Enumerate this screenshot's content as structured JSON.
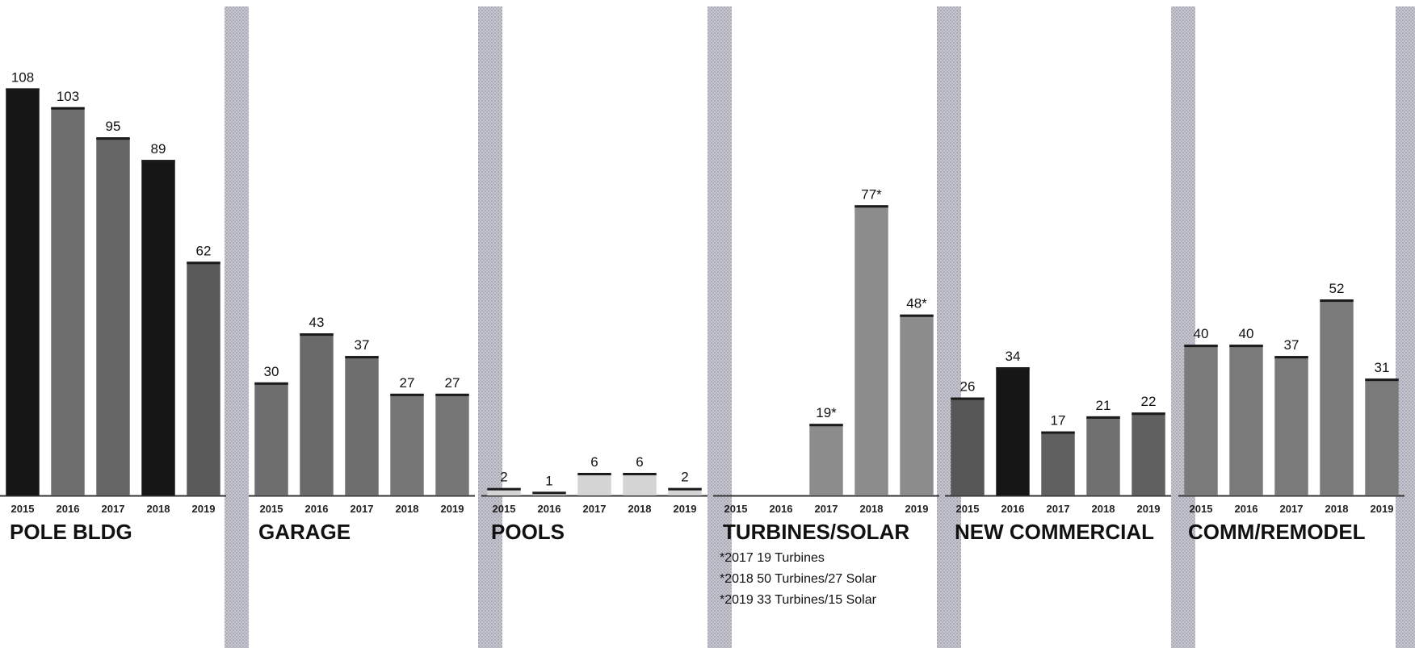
{
  "chart_data": {
    "type": "bar",
    "title": "",
    "xlabel": "",
    "ylabel": "",
    "ylim": [
      0,
      125
    ],
    "grid": false,
    "legend": "none",
    "groups": [
      {
        "name": "POLE BLDG",
        "categories": [
          "2015",
          "2016",
          "2017",
          "2018",
          "2019"
        ],
        "values": [
          108,
          103,
          95,
          89,
          62
        ],
        "labels": [
          "108",
          "103",
          "95",
          "89",
          "62"
        ],
        "colors": [
          "#161616",
          "#6e6e6e",
          "#666666",
          "#161616",
          "#5a5a5a"
        ],
        "notes": []
      },
      {
        "name": "GARAGE",
        "categories": [
          "2015",
          "2016",
          "2017",
          "2018",
          "2019"
        ],
        "values": [
          30,
          43,
          37,
          27,
          27
        ],
        "labels": [
          "30",
          "43",
          "37",
          "27",
          "27"
        ],
        "colors": [
          "#6e6e6e",
          "#6a6a6a",
          "#6e6e6e",
          "#767676",
          "#767676"
        ],
        "notes": []
      },
      {
        "name": "POOLS",
        "categories": [
          "2015",
          "2016",
          "2017",
          "2018",
          "2019"
        ],
        "values": [
          2,
          1,
          6,
          6,
          2
        ],
        "labels": [
          "2",
          "1",
          "6",
          "6",
          "2"
        ],
        "colors": [
          "#d4d4d4",
          "#d4d4d4",
          "#d4d4d4",
          "#d4d4d4",
          "#d4d4d4"
        ],
        "notes": []
      },
      {
        "name": "TURBINES/SOLAR",
        "categories": [
          "2015",
          "2016",
          "2017",
          "2018",
          "2019"
        ],
        "values": [
          0,
          0,
          19,
          77,
          48
        ],
        "labels": [
          "",
          "",
          "19*",
          "77*",
          "48*"
        ],
        "colors": [
          "#8c8c8c",
          "#8c8c8c",
          "#8c8c8c",
          "#8c8c8c",
          "#8c8c8c"
        ],
        "notes": [
          "*2017 19 Turbines",
          "*2018 50 Turbines/27 Solar",
          "*2019 33 Turbines/15 Solar"
        ]
      },
      {
        "name": "NEW COMMERCIAL",
        "categories": [
          "2015",
          "2016",
          "2017",
          "2018",
          "2019"
        ],
        "values": [
          26,
          34,
          17,
          21,
          22
        ],
        "labels": [
          "26",
          "34",
          "17",
          "21",
          "22"
        ],
        "colors": [
          "#575757",
          "#161616",
          "#606060",
          "#707070",
          "#606060"
        ],
        "notes": []
      },
      {
        "name": "COMM/REMODEL",
        "categories": [
          "2015",
          "2016",
          "2017",
          "2018",
          "2019"
        ],
        "values": [
          40,
          40,
          37,
          52,
          31
        ],
        "labels": [
          "40",
          "40",
          "37",
          "52",
          "31"
        ],
        "colors": [
          "#7a7a7a",
          "#7a7a7a",
          "#7a7a7a",
          "#7a7a7a",
          "#7a7a7a"
        ],
        "notes": []
      }
    ]
  }
}
